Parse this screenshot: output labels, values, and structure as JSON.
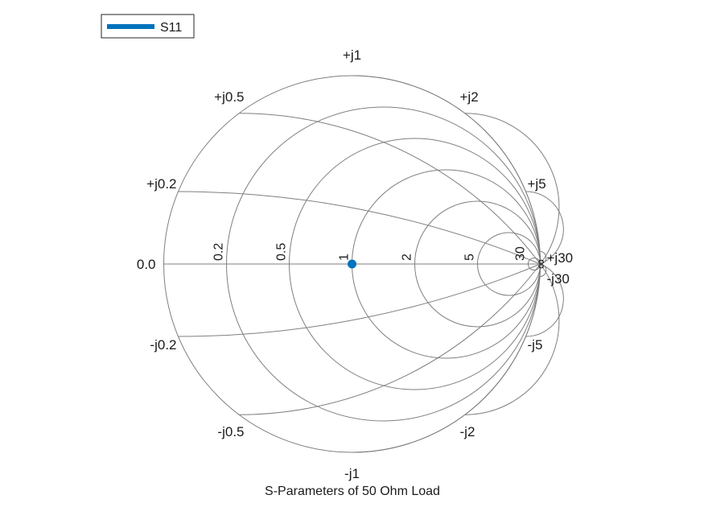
{
  "chart_data": {
    "type": "smith",
    "title": "S-Parameters of  50 Ohm Load",
    "legend": {
      "placement": "top-left",
      "entries": [
        {
          "name": "S11",
          "color": "#0072BD"
        }
      ]
    },
    "resistance_circles": [
      0.2,
      0.5,
      1,
      2,
      5,
      30
    ],
    "reactance_arcs": [
      0.2,
      0.5,
      1,
      2,
      5,
      30
    ],
    "resistance_labels": [
      "0.0",
      "0.2",
      "0.5",
      "1",
      "2",
      "5",
      "30",
      "∞"
    ],
    "reactance_labels_pos": [
      "+j0.2",
      "+j0.5",
      "+j1",
      "+j2",
      "+j5",
      "+j30"
    ],
    "reactance_labels_neg": [
      "-j0.2",
      "-j0.5",
      "-j1",
      "-j2",
      "-j5",
      "-j30"
    ],
    "series": [
      {
        "name": "S11",
        "color": "#0072BD",
        "points": [
          {
            "re": 0,
            "im": 0
          }
        ]
      }
    ],
    "grid": true
  }
}
